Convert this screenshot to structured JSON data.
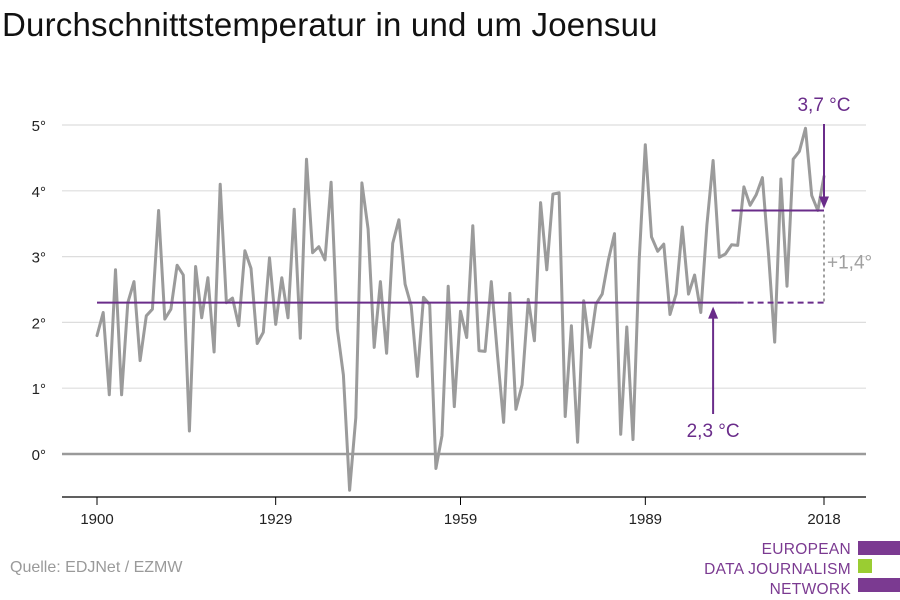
{
  "title": "Durchschnittstemperatur in und um Joensuu",
  "source": "Quelle: EDJNet / EZMW",
  "logo": {
    "lines": [
      "EUROPEAN",
      "DATA JOURNALISM",
      "NETWORK"
    ]
  },
  "colors": {
    "series": "#9b9b9b",
    "annotation": "#6a2c8a",
    "delta": "#a0a0a0",
    "grid": "#dddddd",
    "zero": "#9a9a9a",
    "logo_purple": "#7b3a91",
    "logo_green": "#9acd32"
  },
  "chart_data": {
    "type": "line",
    "title": "Durchschnittstemperatur in und um Joensuu",
    "xlabel": "",
    "ylabel": "",
    "xlim": [
      1900,
      2018
    ],
    "ylim": [
      -0.5,
      5
    ],
    "x_ticks": [
      1900,
      1929,
      1959,
      1989,
      2018
    ],
    "y_ticks": [
      0,
      1,
      2,
      3,
      4,
      5
    ],
    "y_tick_labels": [
      "0°",
      "1°",
      "2°",
      "3°",
      "4°",
      "5°"
    ],
    "grid": true,
    "series": [
      {
        "x": [
          1900,
          1901,
          1902,
          1903,
          1904,
          1905,
          1906,
          1907,
          1908,
          1909,
          1910,
          1911,
          1912,
          1913,
          1914,
          1915,
          1916,
          1917,
          1918,
          1919,
          1920,
          1921,
          1922,
          1923,
          1924,
          1925,
          1926,
          1927,
          1928,
          1929,
          1930,
          1931,
          1932,
          1933,
          1934,
          1935,
          1936,
          1937,
          1938,
          1939,
          1940,
          1941,
          1942,
          1943,
          1944,
          1945,
          1946,
          1947,
          1948,
          1949,
          1950,
          1951,
          1952,
          1953,
          1954,
          1955,
          1956,
          1957,
          1958,
          1959,
          1960,
          1961,
          1962,
          1963,
          1964,
          1965,
          1966,
          1967,
          1968,
          1969,
          1970,
          1971,
          1972,
          1973,
          1974,
          1975,
          1976,
          1977,
          1978,
          1979,
          1980,
          1981,
          1982,
          1983,
          1984,
          1985,
          1986,
          1987,
          1988,
          1989,
          1990,
          1991,
          1992,
          1993,
          1994,
          1995,
          1996,
          1997,
          1998,
          1999,
          2000,
          2001,
          2002,
          2003,
          2004,
          2005,
          2006,
          2007,
          2008,
          2009,
          2010,
          2011,
          2012,
          2013,
          2014,
          2015,
          2016,
          2017,
          2018
        ],
        "values": [
          1.8,
          2.15,
          0.9,
          2.8,
          0.9,
          2.3,
          2.62,
          1.42,
          2.1,
          2.2,
          3.7,
          2.05,
          2.2,
          2.87,
          2.72,
          0.35,
          2.85,
          2.07,
          2.68,
          1.55,
          4.1,
          2.3,
          2.37,
          1.95,
          3.09,
          2.82,
          1.68,
          1.85,
          2.98,
          1.97,
          2.68,
          2.07,
          3.72,
          1.76,
          4.48,
          3.06,
          3.15,
          2.95,
          4.13,
          1.9,
          1.2,
          -0.55,
          0.55,
          4.12,
          3.42,
          1.62,
          2.62,
          1.53,
          3.2,
          3.56,
          2.58,
          2.25,
          1.18,
          2.38,
          2.27,
          -0.22,
          0.28,
          2.55,
          0.72,
          2.17,
          1.77,
          3.47,
          1.57,
          1.56,
          2.62,
          1.5,
          0.48,
          2.44,
          0.68,
          1.05,
          2.35,
          1.72,
          3.82,
          2.8,
          3.95,
          3.97,
          0.57,
          1.95,
          0.18,
          2.33,
          1.62,
          2.28,
          2.43,
          2.95,
          3.35,
          0.3,
          1.93,
          0.22,
          2.95,
          4.7,
          3.3,
          3.08,
          3.19,
          2.12,
          2.43,
          3.45,
          2.43,
          2.72,
          2.15,
          3.48,
          4.46,
          2.99,
          3.04,
          3.18,
          3.17,
          4.06,
          3.78,
          3.94,
          4.2,
          3.02,
          1.7,
          4.18,
          2.55,
          4.48,
          4.6,
          4.95,
          3.93,
          3.7,
          4.22
        ]
      }
    ],
    "baseline": {
      "value": 2.3,
      "label": "2,3 °C",
      "solid_from": 1900,
      "solid_to": 2003,
      "dashed_to": 2018
    },
    "recent": {
      "value": 3.7,
      "label": "3,7 °C",
      "from": 2003,
      "to": 2018
    },
    "delta": {
      "label": "+1,4°",
      "x": 2018
    }
  }
}
